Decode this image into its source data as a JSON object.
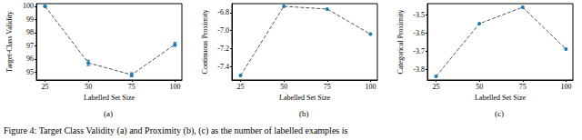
{
  "caption": "Figure 4: Target Class Validity (a) and Proximity (b), (c) as the number of labelled examples is",
  "chart_data": [
    {
      "type": "line",
      "title": "(a)",
      "x_label": "Labelled Set Size",
      "y_label": "Target-Class Validity",
      "x": [
        25,
        50,
        75,
        100
      ],
      "values": [
        100,
        95.7,
        94.8,
        97.1
      ],
      "errors": [
        0.05,
        0.2,
        0.15,
        0.15
      ],
      "color": "#1f77b4",
      "marker": "circle",
      "line_style": "dashed",
      "grid": false,
      "xlim": [
        20,
        104
      ],
      "xticks": [
        25,
        50,
        75,
        100
      ],
      "ylim": [
        94.4,
        100.2
      ],
      "yticks": [
        95,
        96,
        97,
        98,
        99,
        100
      ]
    },
    {
      "type": "line",
      "title": "(b)",
      "x_label": "Labelled Set Size",
      "y_label": "Continuous Proximity",
      "x": [
        25,
        50,
        75,
        100
      ],
      "values": [
        -7.5,
        -6.73,
        -6.76,
        -7.04
      ],
      "color": "#1f77b4",
      "marker": "circle",
      "line_style": "dashed",
      "grid": false,
      "xlim": [
        20,
        104
      ],
      "xticks": [
        25,
        50,
        75,
        100
      ],
      "ylim": [
        -7.55,
        -6.7
      ],
      "yticks": [
        -7.4,
        -7.2,
        {
          "value": -7,
          "label": "-7.0"
        },
        -6.8
      ]
    },
    {
      "type": "line",
      "title": "(c)",
      "x_label": "Labelled Set Size",
      "y_label": "Categorical Proximity",
      "x": [
        25,
        50,
        75,
        100
      ],
      "values": [
        -3.84,
        -3.55,
        -3.46,
        -3.69
      ],
      "color": "#1f77b4",
      "marker": "circle",
      "line_style": "dashed",
      "grid": false,
      "xlim": [
        20,
        104
      ],
      "xticks": [
        25,
        50,
        75,
        100
      ],
      "ylim": [
        -3.86,
        -3.44
      ],
      "yticks": [
        -3.8,
        -3.7,
        -3.6,
        -3.5
      ]
    }
  ]
}
